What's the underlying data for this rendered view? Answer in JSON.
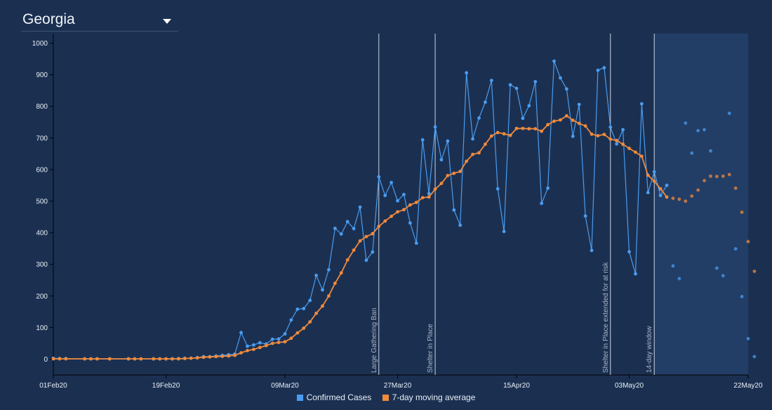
{
  "header": {
    "state_label": "Georgia",
    "dropdown_icon": "caret-down-icon"
  },
  "legend": [
    {
      "label": "Confirmed Cases",
      "color": "#4a9cf0"
    },
    {
      "label": "7-day moving average",
      "color": "#f08a3c"
    }
  ],
  "chart_data": {
    "type": "line",
    "title": "",
    "xlabel": "",
    "ylabel": "",
    "x_range": [
      "2020-02-01",
      "2020-05-22"
    ],
    "ylim": [
      -50,
      1030
    ],
    "y_ticks": [
      0,
      100,
      200,
      300,
      400,
      500,
      600,
      700,
      800,
      900,
      1000
    ],
    "x_ticks": [
      {
        "date": "2020-02-01",
        "label": "01Feb20"
      },
      {
        "date": "2020-02-19",
        "label": "19Feb20"
      },
      {
        "date": "2020-03-09",
        "label": "09Mar20"
      },
      {
        "date": "2020-03-27",
        "label": "27Mar20"
      },
      {
        "date": "2020-04-15",
        "label": "15Apr20"
      },
      {
        "date": "2020-05-03",
        "label": "03May20"
      },
      {
        "date": "2020-05-22",
        "label": "22May20"
      }
    ],
    "annotations": [
      {
        "date": "2020-03-24",
        "label": "Large Gathering Ban"
      },
      {
        "date": "2020-04-02",
        "label": "Shelter in Place"
      },
      {
        "date": "2020-04-30",
        "label": "Shelter in Place extended for at risk"
      },
      {
        "date": "2020-05-07",
        "label": "14-day window"
      }
    ],
    "shaded_window": {
      "start": "2020-05-07",
      "end": "2020-05-22"
    },
    "series": [
      {
        "name": "Confirmed Cases",
        "color": "#4a9cf0",
        "points": [
          [
            "2020-02-01",
            3
          ],
          [
            "2020-02-02",
            2
          ],
          [
            "2020-02-03",
            2
          ],
          [
            "2020-02-06",
            1
          ],
          [
            "2020-02-07",
            1
          ],
          [
            "2020-02-08",
            1
          ],
          [
            "2020-02-10",
            1
          ],
          [
            "2020-02-13",
            1
          ],
          [
            "2020-02-14",
            1
          ],
          [
            "2020-02-15",
            1
          ],
          [
            "2020-02-17",
            1
          ],
          [
            "2020-02-18",
            1
          ],
          [
            "2020-02-19",
            1
          ],
          [
            "2020-02-20",
            1
          ],
          [
            "2020-02-21",
            2
          ],
          [
            "2020-02-22",
            3
          ],
          [
            "2020-02-23",
            3
          ],
          [
            "2020-02-24",
            5
          ],
          [
            "2020-02-25",
            8
          ],
          [
            "2020-02-26",
            8
          ],
          [
            "2020-02-27",
            10
          ],
          [
            "2020-02-28",
            12
          ],
          [
            "2020-02-29",
            14
          ],
          [
            "2020-03-01",
            16
          ],
          [
            "2020-03-02",
            84
          ],
          [
            "2020-03-03",
            41
          ],
          [
            "2020-03-04",
            45
          ],
          [
            "2020-03-05",
            52
          ],
          [
            "2020-03-06",
            48
          ],
          [
            "2020-03-07",
            63
          ],
          [
            "2020-03-08",
            64
          ],
          [
            "2020-03-09",
            80
          ],
          [
            "2020-03-10",
            124
          ],
          [
            "2020-03-11",
            158
          ],
          [
            "2020-03-12",
            160
          ],
          [
            "2020-03-13",
            186
          ],
          [
            "2020-03-14",
            265
          ],
          [
            "2020-03-15",
            219
          ],
          [
            "2020-03-16",
            283
          ],
          [
            "2020-03-17",
            414
          ],
          [
            "2020-03-18",
            396
          ],
          [
            "2020-03-19",
            435
          ],
          [
            "2020-03-20",
            413
          ],
          [
            "2020-03-21",
            481
          ],
          [
            "2020-03-22",
            313
          ],
          [
            "2020-03-23",
            339
          ],
          [
            "2020-03-24",
            577
          ],
          [
            "2020-03-25",
            518
          ],
          [
            "2020-03-26",
            559
          ],
          [
            "2020-03-27",
            501
          ],
          [
            "2020-03-28",
            521
          ],
          [
            "2020-03-29",
            431
          ],
          [
            "2020-03-30",
            367
          ],
          [
            "2020-03-31",
            694
          ],
          [
            "2020-04-01",
            524
          ],
          [
            "2020-04-02",
            735
          ],
          [
            "2020-04-03",
            631
          ],
          [
            "2020-04-04",
            690
          ],
          [
            "2020-04-05",
            472
          ],
          [
            "2020-04-06",
            424
          ],
          [
            "2020-04-07",
            906
          ],
          [
            "2020-04-08",
            697
          ],
          [
            "2020-04-09",
            763
          ],
          [
            "2020-04-10",
            813
          ],
          [
            "2020-04-11",
            882
          ],
          [
            "2020-04-12",
            539
          ],
          [
            "2020-04-13",
            404
          ],
          [
            "2020-04-14",
            868
          ],
          [
            "2020-04-15",
            857
          ],
          [
            "2020-04-16",
            762
          ],
          [
            "2020-04-17",
            802
          ],
          [
            "2020-04-18",
            878
          ],
          [
            "2020-04-19",
            493
          ],
          [
            "2020-04-20",
            541
          ],
          [
            "2020-04-21",
            943
          ],
          [
            "2020-04-22",
            890
          ],
          [
            "2020-04-23",
            855
          ],
          [
            "2020-04-24",
            705
          ],
          [
            "2020-04-25",
            806
          ],
          [
            "2020-04-26",
            453
          ],
          [
            "2020-04-27",
            344
          ],
          [
            "2020-04-28",
            914
          ],
          [
            "2020-04-29",
            922
          ],
          [
            "2020-04-30",
            734
          ],
          [
            "2020-05-01",
            681
          ],
          [
            "2020-05-02",
            726
          ],
          [
            "2020-05-03",
            340
          ],
          [
            "2020-05-04",
            270
          ],
          [
            "2020-05-05",
            808
          ],
          [
            "2020-05-06",
            527
          ],
          [
            "2020-05-07",
            593
          ],
          [
            "2020-05-08",
            518
          ],
          [
            "2020-05-09",
            550
          ]
        ]
      },
      {
        "name": "7-day moving average",
        "color": "#f08a3c",
        "points": [
          [
            "2020-02-01",
            1
          ],
          [
            "2020-02-02",
            1
          ],
          [
            "2020-02-03",
            1
          ],
          [
            "2020-02-06",
            1
          ],
          [
            "2020-02-07",
            1
          ],
          [
            "2020-02-08",
            1
          ],
          [
            "2020-02-10",
            1
          ],
          [
            "2020-02-13",
            1
          ],
          [
            "2020-02-14",
            1
          ],
          [
            "2020-02-15",
            1
          ],
          [
            "2020-02-17",
            1
          ],
          [
            "2020-02-18",
            1
          ],
          [
            "2020-02-19",
            1
          ],
          [
            "2020-02-20",
            1
          ],
          [
            "2020-02-21",
            1
          ],
          [
            "2020-02-22",
            2
          ],
          [
            "2020-02-23",
            3
          ],
          [
            "2020-02-24",
            4
          ],
          [
            "2020-02-25",
            6
          ],
          [
            "2020-02-26",
            7
          ],
          [
            "2020-02-27",
            8
          ],
          [
            "2020-02-28",
            9
          ],
          [
            "2020-02-29",
            10
          ],
          [
            "2020-03-01",
            12
          ],
          [
            "2020-03-02",
            20
          ],
          [
            "2020-03-03",
            27
          ],
          [
            "2020-03-04",
            31
          ],
          [
            "2020-03-05",
            37
          ],
          [
            "2020-03-06",
            43
          ],
          [
            "2020-03-07",
            50
          ],
          [
            "2020-03-08",
            53
          ],
          [
            "2020-03-09",
            55
          ],
          [
            "2020-03-10",
            66
          ],
          [
            "2020-03-11",
            83
          ],
          [
            "2020-03-12",
            98
          ],
          [
            "2020-03-13",
            118
          ],
          [
            "2020-03-14",
            145
          ],
          [
            "2020-03-15",
            168
          ],
          [
            "2020-03-16",
            200
          ],
          [
            "2020-03-17",
            240
          ],
          [
            "2020-03-18",
            273
          ],
          [
            "2020-03-19",
            314
          ],
          [
            "2020-03-20",
            345
          ],
          [
            "2020-03-21",
            374
          ],
          [
            "2020-03-22",
            388
          ],
          [
            "2020-03-23",
            397
          ],
          [
            "2020-03-24",
            420
          ],
          [
            "2020-03-25",
            437
          ],
          [
            "2020-03-26",
            452
          ],
          [
            "2020-03-27",
            466
          ],
          [
            "2020-03-28",
            473
          ],
          [
            "2020-03-29",
            488
          ],
          [
            "2020-03-30",
            496
          ],
          [
            "2020-03-31",
            511
          ],
          [
            "2020-04-01",
            513
          ],
          [
            "2020-04-02",
            538
          ],
          [
            "2020-04-03",
            556
          ],
          [
            "2020-04-04",
            581
          ],
          [
            "2020-04-05",
            588
          ],
          [
            "2020-04-06",
            594
          ],
          [
            "2020-04-07",
            626
          ],
          [
            "2020-04-08",
            648
          ],
          [
            "2020-04-09",
            653
          ],
          [
            "2020-04-10",
            680
          ],
          [
            "2020-04-11",
            706
          ],
          [
            "2020-04-12",
            717
          ],
          [
            "2020-04-13",
            713
          ],
          [
            "2020-04-14",
            708
          ],
          [
            "2020-04-15",
            730
          ],
          [
            "2020-04-16",
            730
          ],
          [
            "2020-04-17",
            729
          ],
          [
            "2020-04-18",
            729
          ],
          [
            "2020-04-19",
            721
          ],
          [
            "2020-04-20",
            742
          ],
          [
            "2020-04-21",
            753
          ],
          [
            "2020-04-22",
            757
          ],
          [
            "2020-04-23",
            770
          ],
          [
            "2020-04-24",
            756
          ],
          [
            "2020-04-25",
            746
          ],
          [
            "2020-04-26",
            738
          ],
          [
            "2020-04-27",
            712
          ],
          [
            "2020-04-28",
            707
          ],
          [
            "2020-04-29",
            711
          ],
          [
            "2020-04-30",
            696
          ],
          [
            "2020-05-01",
            692
          ],
          [
            "2020-05-02",
            680
          ],
          [
            "2020-05-03",
            667
          ],
          [
            "2020-05-04",
            655
          ],
          [
            "2020-05-05",
            642
          ],
          [
            "2020-05-06",
            582
          ],
          [
            "2020-05-07",
            563
          ],
          [
            "2020-05-08",
            539
          ],
          [
            "2020-05-09",
            513
          ]
        ]
      },
      {
        "name": "Confirmed Cases (14-day window)",
        "color": "#4a9cf0",
        "points": [
          [
            "2020-05-10",
            295
          ],
          [
            "2020-05-11",
            255
          ],
          [
            "2020-05-12",
            747
          ],
          [
            "2020-05-13",
            652
          ],
          [
            "2020-05-14",
            723
          ],
          [
            "2020-05-15",
            726
          ],
          [
            "2020-05-16",
            659
          ],
          [
            "2020-05-17",
            288
          ],
          [
            "2020-05-18",
            264
          ],
          [
            "2020-05-19",
            778
          ],
          [
            "2020-05-20",
            349
          ],
          [
            "2020-05-21",
            198
          ],
          [
            "2020-05-22",
            65
          ],
          [
            "2020-05-23",
            8
          ]
        ]
      },
      {
        "name": "7-day moving average (14-day window)",
        "color": "#f08a3c",
        "points": [
          [
            "2020-05-10",
            509
          ],
          [
            "2020-05-11",
            506
          ],
          [
            "2020-05-12",
            500
          ],
          [
            "2020-05-13",
            516
          ],
          [
            "2020-05-14",
            535
          ],
          [
            "2020-05-15",
            565
          ],
          [
            "2020-05-16",
            579
          ],
          [
            "2020-05-17",
            578
          ],
          [
            "2020-05-18",
            579
          ],
          [
            "2020-05-19",
            584
          ],
          [
            "2020-05-20",
            541
          ],
          [
            "2020-05-21",
            465
          ],
          [
            "2020-05-22",
            372
          ],
          [
            "2020-05-23",
            278
          ]
        ]
      }
    ]
  }
}
